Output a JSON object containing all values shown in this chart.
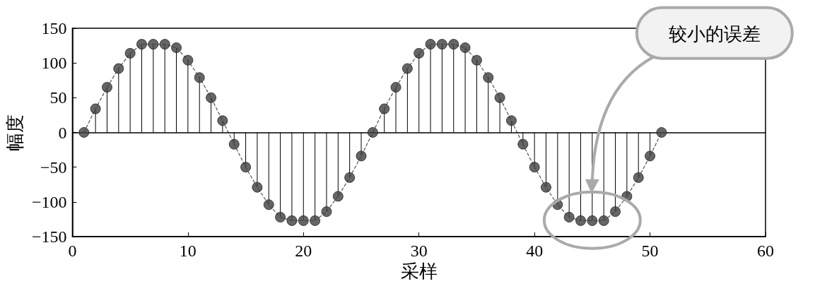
{
  "chart_data": {
    "type": "lollipop",
    "xlabel": "采样",
    "ylabel": "幅度",
    "x": [
      1,
      2,
      3,
      4,
      5,
      6,
      7,
      8,
      9,
      10,
      11,
      12,
      13,
      14,
      15,
      16,
      17,
      18,
      19,
      20,
      21,
      22,
      23,
      24,
      25,
      26,
      27,
      28,
      29,
      30,
      31,
      32,
      33,
      34,
      35,
      36,
      37,
      38,
      39,
      40,
      41,
      42,
      43,
      44,
      45,
      46,
      47,
      48,
      49,
      50,
      51
    ],
    "series": [
      {
        "color": "#404040",
        "values": [
          0,
          34,
          65,
          92,
          114,
          127,
          127,
          127,
          122,
          104,
          79,
          50,
          17,
          -17,
          -50,
          -79,
          -104,
          -122,
          -127,
          -127,
          -127,
          -114,
          -92,
          -65,
          -34,
          0,
          34,
          65,
          92,
          114,
          127,
          127,
          127,
          122,
          104,
          79,
          50,
          17,
          -17,
          -50,
          -79,
          -104,
          -122,
          -127,
          -127,
          -127,
          -114,
          -92,
          -65,
          -34,
          0
        ]
      },
      {
        "type": "line",
        "color": "#555555",
        "line_style": "dashed",
        "marker": "none",
        "values": [
          0,
          34,
          65,
          92,
          114,
          127,
          127,
          127,
          122,
          104,
          79,
          50,
          17,
          -17,
          -50,
          -79,
          -104,
          -122,
          -127,
          -127,
          -127,
          -114,
          -92,
          -65,
          -34,
          0,
          34,
          65,
          92,
          114,
          127,
          127,
          127,
          122,
          104,
          79,
          50,
          17,
          -17,
          -50,
          -79,
          -104,
          -122,
          -127,
          -127,
          -127,
          -114,
          -92,
          -65,
          -34,
          0
        ]
      }
    ],
    "xlim": [
      0,
      60
    ],
    "xticks": [
      0,
      10,
      20,
      30,
      40,
      50,
      60
    ],
    "ylim": [
      -150,
      150
    ],
    "yticks": [
      -150,
      -100,
      -50,
      0,
      50,
      100,
      150
    ],
    "ref_lines": [
      {
        "axis": "y",
        "value": 0,
        "color": "#000000"
      }
    ],
    "annotations": [
      "较小的误差"
    ],
    "grid": false
  }
}
